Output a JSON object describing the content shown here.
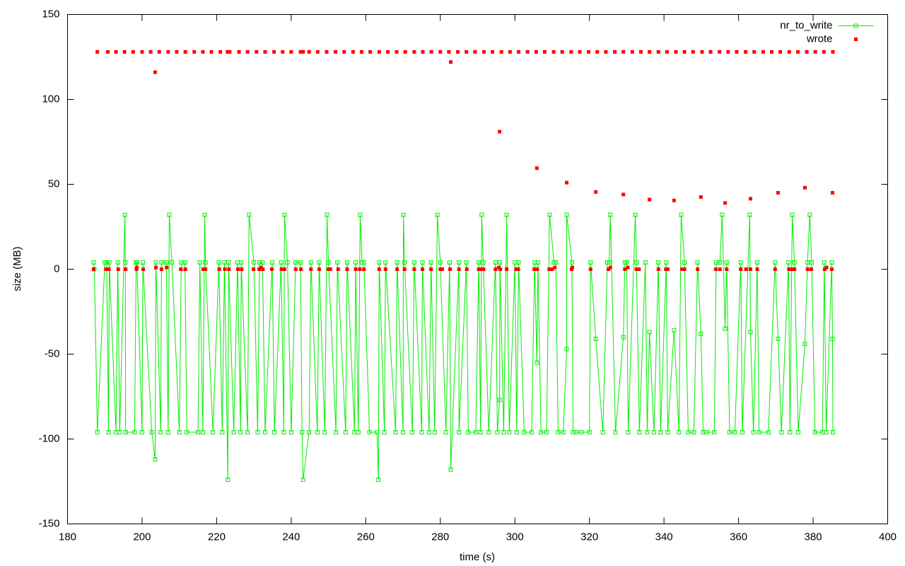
{
  "chart_data": {
    "type": "line",
    "xlabel": "time (s)",
    "ylabel": "size (MB)",
    "xlim": [
      180,
      400
    ],
    "ylim": [
      -150,
      150
    ],
    "xticks": [
      180,
      200,
      220,
      240,
      260,
      280,
      300,
      320,
      340,
      360,
      380,
      400
    ],
    "yticks": [
      -150,
      -100,
      -50,
      0,
      50,
      100,
      150
    ],
    "grid": false,
    "legend": "top-right",
    "series": [
      {
        "name": "nr_to_write",
        "color": "#00ee00",
        "type": "line",
        "x": [
          187,
          187.2,
          188,
          190,
          190.5,
          191,
          191.2,
          193,
          193.5,
          194,
          195.4,
          195.5,
          195.6,
          198,
          198.4,
          198.6,
          200,
          200.2,
          202.6,
          203.5,
          203.7,
          205,
          205.2,
          206.5,
          207,
          207.3,
          208,
          210,
          210.5,
          211.5,
          212,
          215,
          215.5,
          216.3,
          216.8,
          217,
          219,
          220.6,
          221.5,
          222.1,
          223,
          223.2,
          224.6,
          225.6,
          226.4,
          226.6,
          228.3,
          228.7,
          230,
          231,
          231.5,
          232.3,
          233,
          234.9,
          235.5,
          237.3,
          238,
          238.2,
          239,
          240,
          241.2,
          242.5,
          242.9,
          243.2,
          244.8,
          245.3,
          247,
          247.5,
          249,
          249.6,
          250,
          252,
          252.4,
          254.6,
          255,
          257,
          257.3,
          258,
          258.5,
          259,
          259.5,
          261,
          263,
          263.4,
          263.6,
          265,
          265.3,
          268,
          268.4,
          270,
          270.1,
          270.4,
          272.5,
          273,
          275,
          275.2,
          277,
          277.5,
          278.5,
          279.2,
          280,
          281.5,
          282.5,
          282.8,
          285,
          285,
          287,
          287.5,
          289.5,
          290.3,
          290.8,
          291.1,
          291.5,
          293,
          294.8,
          295.3,
          295.9,
          296,
          297,
          297.8,
          298.5,
          300,
          300.5,
          301,
          302.5,
          304.5,
          305.3,
          305.9,
          306.2,
          307,
          308.5,
          309.3,
          310.5,
          311,
          311.6,
          313,
          313.9,
          313.9,
          315.3,
          315.6,
          316.5,
          317.9,
          320,
          320.3,
          321.7,
          323.6,
          324.8,
          325.3,
          325.6,
          327,
          329.1,
          329.5,
          330,
          330.4,
          332.3,
          332.6,
          333.4,
          335,
          335.5,
          336.1,
          337.3,
          338.5,
          339.1,
          340.6,
          341,
          342.7,
          344,
          344.6,
          345.5,
          346.5,
          348,
          349,
          349.9,
          350.5,
          351.5,
          353.5,
          354,
          355,
          355.6,
          356.4,
          356.8,
          357.6,
          359,
          360.6,
          361,
          363,
          363.2,
          364,
          365,
          365.5,
          368,
          369.8,
          370.6,
          371.5,
          373.4,
          373.8,
          374.4,
          375,
          376,
          377.8,
          378.5,
          379.1,
          379.6,
          380.5,
          382.5,
          383,
          383.5,
          385,
          385.2,
          385.3
        ],
        "values": [
          4,
          0,
          -96,
          4,
          4,
          -96,
          4,
          -96,
          4,
          -96,
          32,
          4,
          -96,
          -96,
          4,
          4,
          -96,
          4,
          -96,
          -112,
          4,
          -96,
          4,
          4,
          -96,
          32,
          4,
          -96,
          4,
          4,
          -96,
          -96,
          4,
          -96,
          32,
          4,
          -96,
          4,
          -96,
          4,
          -124,
          4,
          -96,
          4,
          -96,
          4,
          -96,
          32,
          4,
          -96,
          4,
          4,
          -96,
          4,
          -96,
          4,
          -96,
          32,
          4,
          -96,
          4,
          4,
          -96,
          -124,
          -96,
          4,
          -96,
          4,
          -96,
          32,
          4,
          -96,
          4,
          -96,
          4,
          -96,
          4,
          -96,
          32,
          4,
          4,
          -96,
          -96,
          -124,
          4,
          -96,
          4,
          -96,
          4,
          -96,
          32,
          4,
          -96,
          4,
          -96,
          4,
          -96,
          4,
          -96,
          32,
          4,
          -96,
          4,
          -118,
          4,
          -96,
          4,
          -96,
          -96,
          4,
          -96,
          32,
          4,
          -96,
          4,
          -96,
          -77,
          4,
          -96,
          32,
          -96,
          4,
          -96,
          4,
          -96,
          -96,
          4,
          -55,
          4,
          -96,
          -96,
          32,
          4,
          4,
          -96,
          -96,
          -47,
          32,
          4,
          -96,
          -96,
          -96,
          -96,
          4,
          -41,
          -96,
          4,
          4,
          32,
          -96,
          -40,
          4,
          4,
          -96,
          32,
          4,
          -96,
          4,
          -96,
          -37,
          -96,
          4,
          -96,
          4,
          -96,
          -36,
          -96,
          32,
          4,
          -96,
          -96,
          4,
          -38,
          -96,
          -96,
          -96,
          4,
          4,
          32,
          -35,
          4,
          -96,
          -96,
          4,
          -96,
          32,
          -37,
          -96,
          4,
          -96,
          -96,
          4,
          -41,
          -96,
          4,
          -96,
          32,
          4,
          -96,
          -44,
          4,
          32,
          4,
          -96,
          -96,
          4,
          -96,
          4,
          -41,
          -96
        ]
      },
      {
        "name": "wrote",
        "color": "#ff0000",
        "type": "scatter",
        "x": [
          188,
          190.8,
          193,
          195.3,
          197.6,
          200,
          202.3,
          204.6,
          207,
          209.3,
          211.6,
          214,
          216.3,
          218.6,
          221,
          222.9,
          223.5,
          226,
          228.3,
          230.7,
          233,
          235.4,
          237.7,
          240,
          242.5,
          243.2,
          244.8,
          247.1,
          249.5,
          251.9,
          254.2,
          256.6,
          258.9,
          261.2,
          263.6,
          265.9,
          268.3,
          270.6,
          273,
          275.3,
          277.6,
          280,
          282.3,
          284.7,
          287,
          289.3,
          291.7,
          294,
          296.4,
          298.7,
          301,
          303.4,
          305.7,
          308,
          310.4,
          312.7,
          315.1,
          317.4,
          319.8,
          322.1,
          324.4,
          326.8,
          329.1,
          331.5,
          333.8,
          336.1,
          338.5,
          340.8,
          343.2,
          345.5,
          347.8,
          350.2,
          352.5,
          354.9,
          357.2,
          359.5,
          361.9,
          364.2,
          366.6,
          368.9,
          371.2,
          373.6,
          375.9,
          378.3,
          380.6,
          382.9,
          385.3,
          187,
          190.3,
          191.1,
          193.6,
          195.6,
          198.5,
          198.6,
          200.3,
          203.7,
          205.2,
          206.6,
          210.4,
          211.6,
          216.4,
          217,
          220.7,
          222.2,
          223.3,
          225.7,
          226.7,
          229.9,
          231.4,
          231.9,
          232.4,
          234.8,
          237.4,
          238.2,
          241.2,
          242.6,
          245.3,
          247.5,
          250,
          250.5,
          252.6,
          255,
          257.3,
          258.4,
          259.5,
          263.6,
          265.3,
          268.4,
          270.4,
          273,
          275.2,
          277.5,
          280,
          280.5,
          282.6,
          285,
          287.1,
          290.3,
          291,
          291.6,
          294.8,
          295.7,
          296.1,
          297.8,
          300.3,
          300.9,
          305.2,
          306,
          309.2,
          310,
          310.7,
          315.2,
          315.4,
          320.3,
          325.1,
          325.6,
          329.5,
          330.3,
          332.6,
          333.3,
          338.5,
          340.5,
          341,
          344.8,
          345.5,
          349,
          353.9,
          355,
          356.8,
          360.6,
          362,
          363.2,
          365,
          369.8,
          373.5,
          374.2,
          375,
          378.5,
          379.5,
          383.1,
          383.6,
          385,
          203.5,
          282.8,
          295.9,
          305.9,
          313.9,
          321.7,
          329.1,
          336.1,
          342.7,
          349.9,
          356.4,
          363.2,
          370.6,
          377.8,
          385.2
        ],
        "values": [
          128,
          128,
          128,
          128,
          128,
          128,
          128,
          128,
          128,
          128,
          128,
          128,
          128,
          128,
          128,
          128,
          128,
          128,
          128,
          128,
          128,
          128,
          128,
          128,
          128,
          128,
          128,
          128,
          128,
          128,
          128,
          128,
          128,
          128,
          128,
          128,
          128,
          128,
          128,
          128,
          128,
          128,
          128,
          128,
          128,
          128,
          128,
          128,
          128,
          128,
          128,
          128,
          128,
          128,
          128,
          128,
          128,
          128,
          128,
          128,
          128,
          128,
          128,
          128,
          128,
          128,
          128,
          128,
          128,
          128,
          128,
          128,
          128,
          128,
          128,
          128,
          128,
          128,
          128,
          128,
          128,
          128,
          128,
          128,
          128,
          128,
          128,
          0,
          0,
          0,
          0,
          0,
          0,
          1,
          0,
          1,
          0,
          1,
          0,
          0,
          0,
          0,
          0,
          0,
          0,
          0,
          0,
          0,
          0,
          1,
          0,
          0,
          0,
          0,
          0,
          0,
          0,
          0,
          0,
          0,
          0,
          0,
          0,
          0,
          0,
          0,
          0,
          0,
          0,
          0,
          0,
          0,
          0,
          0,
          0,
          0,
          0,
          0,
          0,
          0,
          0,
          1,
          0,
          0,
          0,
          0,
          0,
          0,
          0,
          0,
          1,
          0,
          1,
          0,
          0,
          1,
          0,
          1,
          0,
          0,
          0,
          0,
          0,
          0,
          0,
          0,
          0,
          0,
          0,
          0,
          0,
          0,
          0,
          0,
          0,
          0,
          0,
          0,
          0,
          0,
          1,
          0,
          116,
          122,
          81,
          59.5,
          51,
          45.5,
          44,
          41,
          40.5,
          42.5,
          39,
          41.5,
          45,
          48,
          45
        ]
      }
    ]
  }
}
